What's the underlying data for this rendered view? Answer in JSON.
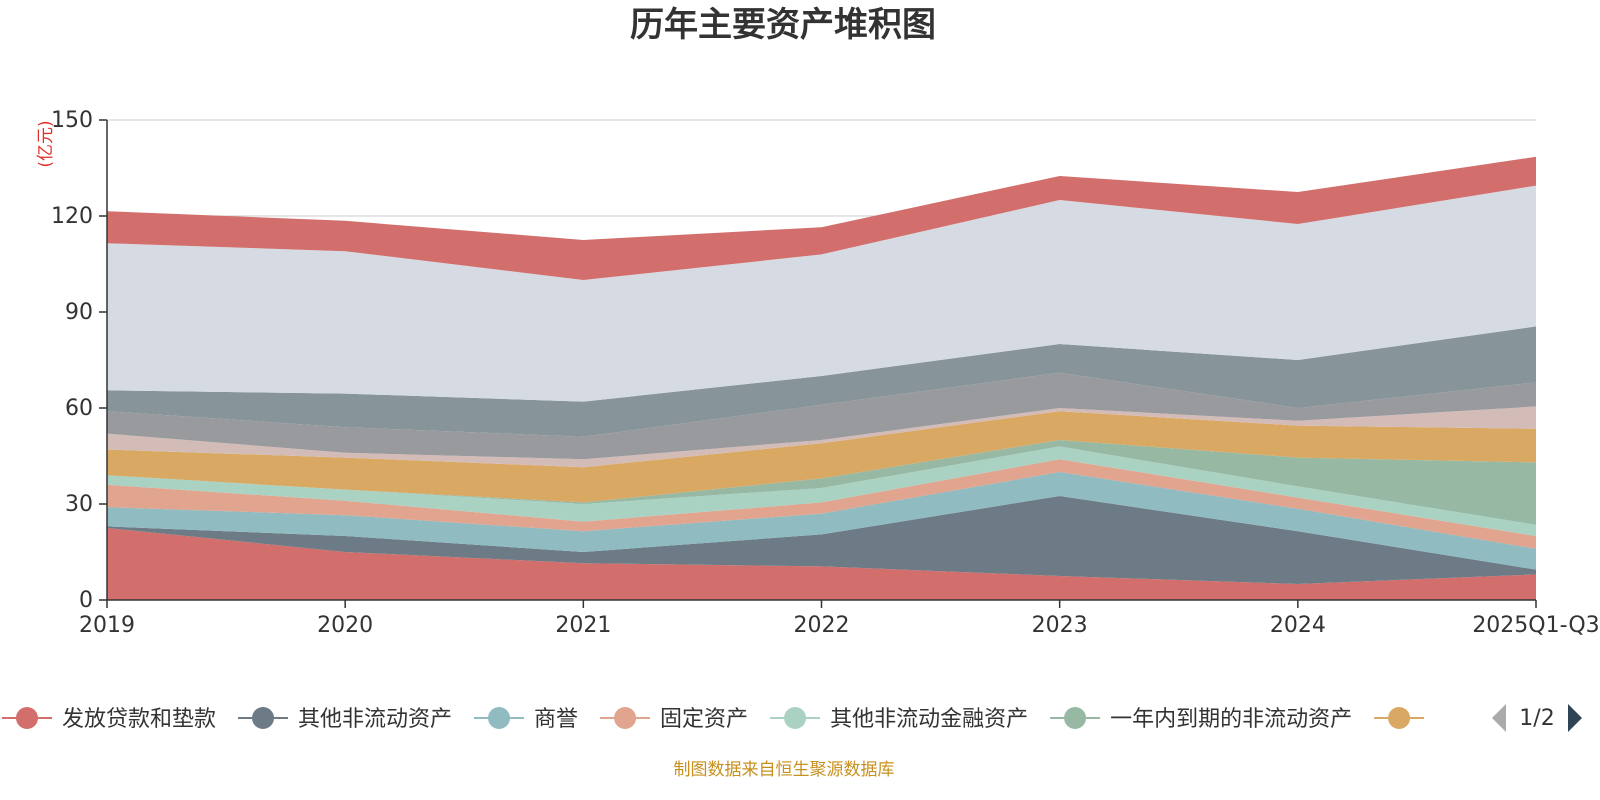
{
  "chart_data": {
    "type": "area",
    "stacked": true,
    "title": "历年主要资产堆积图",
    "unit_label": "(亿元)",
    "x": [
      "2019",
      "2020",
      "2021",
      "2022",
      "2023",
      "2024",
      "2025Q1-Q3"
    ],
    "yticks": [
      0,
      30,
      60,
      90,
      120,
      150
    ],
    "ylim": [
      0,
      150
    ],
    "grid": true,
    "source": "制图数据来自恒生聚源数据库",
    "legend_page": "1/2",
    "series": [
      {
        "name": "发放贷款和垫款",
        "color": "#d26e6b",
        "values": [
          22.5,
          15.0,
          11.5,
          10.5,
          7.5,
          5.0,
          8.0
        ]
      },
      {
        "name": "其他非流动资产",
        "color": "#6d7b87",
        "values": [
          0.5,
          5.0,
          3.5,
          10.0,
          25.0,
          16.5,
          1.5
        ]
      },
      {
        "name": "商誉",
        "color": "#8fbbc1",
        "values": [
          6.0,
          6.5,
          6.5,
          6.5,
          7.5,
          7.0,
          6.5
        ]
      },
      {
        "name": "固定资产",
        "color": "#e1a48f",
        "values": [
          7.0,
          4.5,
          3.0,
          3.5,
          4.0,
          3.5,
          4.0
        ]
      },
      {
        "name": "其他非流动金融资产",
        "color": "#a9d2c3",
        "values": [
          3.0,
          3.5,
          5.5,
          4.5,
          4.0,
          3.5,
          3.5
        ]
      },
      {
        "name": "一年内到期的非流动资产",
        "color": "#97b9a4",
        "values": [
          0.0,
          0.0,
          0.5,
          3.0,
          2.0,
          9.0,
          19.5
        ]
      },
      {
        "name": "",
        "color": "#d9a862",
        "values": [
          8.0,
          10.0,
          11.0,
          11.0,
          9.0,
          10.0,
          10.5
        ]
      },
      {
        "name": "",
        "color": "#d3bcb7",
        "values": [
          5.0,
          1.5,
          2.5,
          1.0,
          1.0,
          1.5,
          7.0
        ]
      },
      {
        "name": "",
        "color": "#999a9e",
        "values": [
          7.0,
          8.0,
          7.0,
          11.0,
          11.0,
          4.0,
          7.5
        ]
      },
      {
        "name": "",
        "color": "#87959b",
        "values": [
          6.5,
          10.5,
          11.0,
          9.0,
          9.0,
          15.0,
          17.5
        ]
      },
      {
        "name": "",
        "color": "#d6dbe3",
        "values": [
          46.0,
          44.5,
          38.0,
          38.0,
          45.0,
          42.5,
          44.0
        ]
      },
      {
        "name": "",
        "color": "#d26e6b",
        "values": [
          10.0,
          9.5,
          12.5,
          8.5,
          7.5,
          10.0,
          9.0
        ]
      }
    ]
  }
}
